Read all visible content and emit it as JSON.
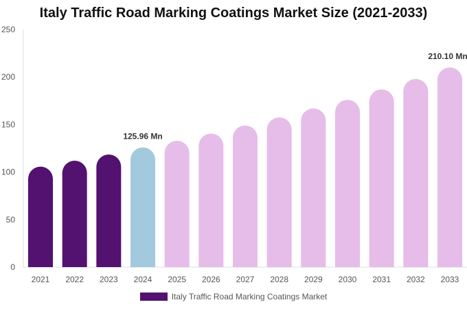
{
  "chart_data": {
    "type": "bar",
    "title": "Italy Traffic Road Marking Coatings Market Size (2021-2033)",
    "categories": [
      "2021",
      "2022",
      "2023",
      "2024",
      "2025",
      "2026",
      "2027",
      "2028",
      "2029",
      "2030",
      "2031",
      "2032",
      "2033"
    ],
    "series": [
      {
        "name": "Italy Traffic Road Marking Coatings Market",
        "values": [
          105.8,
          112,
          118.5,
          125.96,
          133,
          140.5,
          149,
          157.5,
          167,
          176,
          187,
          198,
          210.1
        ]
      }
    ],
    "ylim": [
      0,
      250
    ],
    "yticks": [
      0,
      50,
      100,
      150,
      200,
      250
    ],
    "bar_colors": [
      "#531170",
      "#531170",
      "#531170",
      "#a3c9de",
      "#e6bce9",
      "#e6bce9",
      "#e6bce9",
      "#e6bce9",
      "#e6bce9",
      "#e6bce9",
      "#e6bce9",
      "#e6bce9",
      "#e6bce9"
    ],
    "data_labels": [
      {
        "category": "2024",
        "text": "125.96 Mn"
      },
      {
        "category": "2033",
        "text": "210.10 Mn"
      }
    ],
    "legend_position": "bottom",
    "grid": false
  }
}
